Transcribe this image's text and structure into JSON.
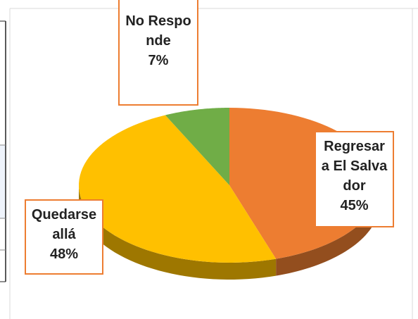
{
  "chart_data": {
    "type": "pie",
    "categories": [
      "Regresar a El Salvador",
      "Quedarse allá",
      "No Responde"
    ],
    "values": [
      45,
      48,
      7
    ],
    "value_labels": [
      "45%",
      "48%",
      "7%"
    ],
    "colors": [
      "#ED7D31",
      "#FFC000",
      "#70AD47"
    ]
  }
}
